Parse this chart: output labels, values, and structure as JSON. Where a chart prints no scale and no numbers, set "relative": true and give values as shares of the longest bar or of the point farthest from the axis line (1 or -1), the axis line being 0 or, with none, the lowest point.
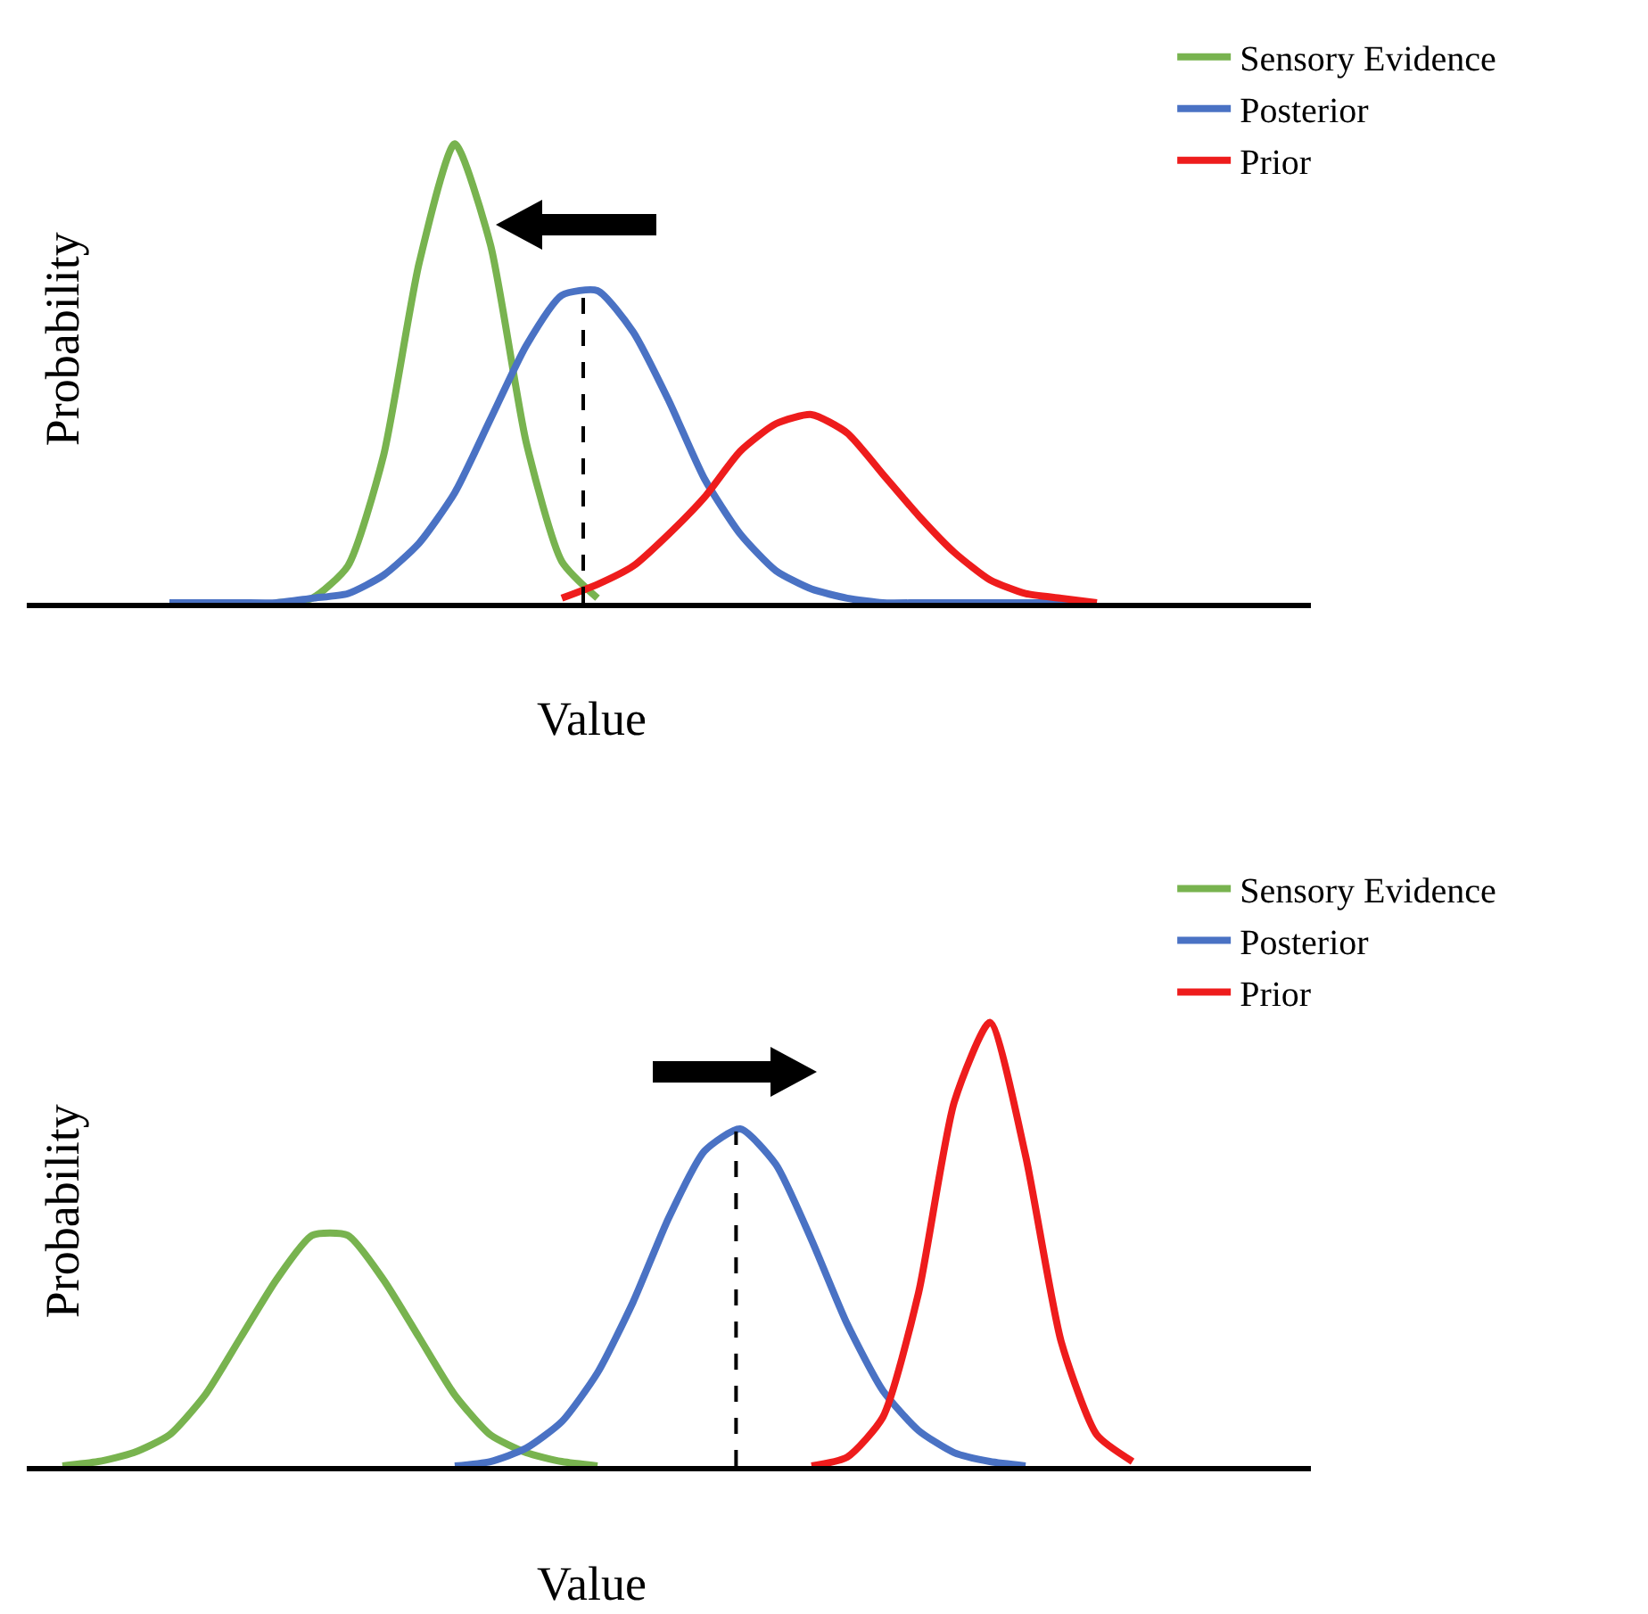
{
  "chart_data": [
    {
      "type": "line",
      "xlabel": "Value",
      "ylabel": "Probability",
      "relative": true,
      "legend": "top right",
      "categories": [
        null,
        null,
        null,
        null,
        null,
        null,
        null,
        null,
        null,
        null,
        null,
        null,
        null,
        null,
        null,
        null,
        null,
        null,
        null,
        null,
        null,
        null,
        null,
        null,
        null,
        null,
        null,
        null,
        null,
        null,
        null,
        null,
        null,
        null,
        null,
        null,
        null
      ],
      "series": [
        {
          "name": "Sensory Evidence",
          "color": "#78b34f",
          "values": [
            null,
            null,
            null,
            null,
            null,
            null,
            null,
            0,
            0.01,
            0.08,
            0.32,
            0.74,
            1,
            0.78,
            0.35,
            0.09,
            0.01,
            null,
            null,
            null,
            null,
            null,
            null,
            null,
            null,
            null,
            null,
            null,
            null,
            null,
            null,
            null,
            null,
            null,
            null,
            null,
            null
          ]
        },
        {
          "name": "Posterior",
          "color": "#4a72c4",
          "values": [
            null,
            null,
            null,
            null,
            0,
            0,
            0,
            0,
            0.01,
            0.02,
            0.06,
            0.13,
            0.24,
            0.4,
            0.56,
            0.67,
            0.68,
            0.59,
            0.44,
            0.27,
            0.15,
            0.07,
            0.03,
            0.01,
            0,
            0,
            0,
            0,
            0,
            0,
            0,
            null,
            null,
            null,
            null,
            null,
            null
          ]
        },
        {
          "name": "Prior",
          "color": "#ee1c1c",
          "values": [
            null,
            null,
            null,
            null,
            null,
            null,
            null,
            null,
            null,
            null,
            null,
            null,
            null,
            null,
            null,
            0.01,
            0.04,
            0.08,
            0.15,
            0.23,
            0.33,
            0.39,
            0.41,
            0.37,
            0.28,
            0.19,
            0.11,
            0.05,
            0.02,
            0.01,
            0,
            null,
            null,
            null,
            null,
            null,
            null
          ]
        }
      ]
    },
    {
      "type": "line",
      "xlabel": "Value",
      "ylabel": "Probability",
      "relative": true,
      "legend": "top right",
      "categories": [
        null,
        null,
        null,
        null,
        null,
        null,
        null,
        null,
        null,
        null,
        null,
        null,
        null,
        null,
        null,
        null,
        null,
        null,
        null,
        null,
        null,
        null,
        null,
        null,
        null,
        null,
        null,
        null,
        null,
        null,
        null,
        null,
        null,
        null,
        null,
        null,
        null
      ],
      "series": [
        {
          "name": "Sensory Evidence",
          "color": "#78b34f",
          "values": [
            null,
            0,
            0.01,
            0.03,
            0.07,
            0.16,
            0.29,
            0.42,
            0.52,
            0.52,
            0.42,
            0.29,
            0.16,
            0.07,
            0.03,
            0.01,
            0,
            null,
            null,
            null,
            null,
            null,
            null,
            null,
            null,
            null,
            null,
            null,
            null,
            null,
            null,
            null,
            null,
            null,
            null,
            null,
            null
          ]
        },
        {
          "name": "Posterior",
          "color": "#4a72c4",
          "values": [
            null,
            null,
            null,
            null,
            null,
            null,
            null,
            null,
            null,
            null,
            null,
            null,
            0,
            0.01,
            0.04,
            0.1,
            0.21,
            0.37,
            0.56,
            0.71,
            0.76,
            0.68,
            0.51,
            0.32,
            0.17,
            0.08,
            0.03,
            0.01,
            0,
            null,
            null,
            null,
            null,
            null,
            null,
            null,
            null
          ]
        },
        {
          "name": "Prior",
          "color": "#ee1c1c",
          "values": [
            null,
            null,
            null,
            null,
            null,
            null,
            null,
            null,
            null,
            null,
            null,
            null,
            null,
            null,
            null,
            null,
            null,
            null,
            null,
            null,
            null,
            null,
            0,
            0.02,
            0.11,
            0.39,
            0.82,
            1,
            0.7,
            0.28,
            0.07,
            0.01,
            null,
            null,
            null,
            null,
            null
          ]
        }
      ]
    }
  ]
}
